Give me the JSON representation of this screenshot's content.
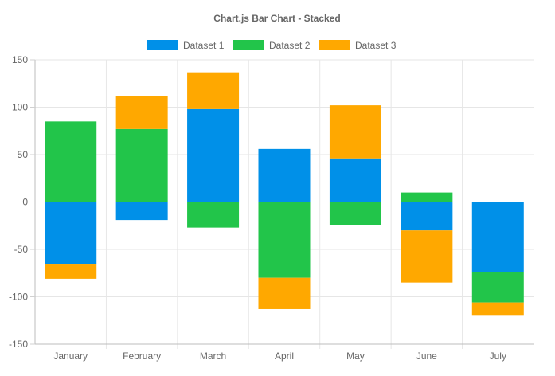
{
  "chart_data": {
    "type": "bar",
    "stacked": true,
    "title": "Chart.js Bar Chart - Stacked",
    "categories": [
      "January",
      "February",
      "March",
      "April",
      "May",
      "June",
      "July"
    ],
    "series": [
      {
        "name": "Dataset 1",
        "color": "#0090e8",
        "values": [
          -66,
          -19,
          98,
          56,
          46,
          -30,
          -74
        ]
      },
      {
        "name": "Dataset 2",
        "color": "#22c54a",
        "values": [
          85,
          77,
          -27,
          -80,
          -24,
          10,
          -32
        ]
      },
      {
        "name": "Dataset 3",
        "color": "#ffa800",
        "values": [
          -15,
          35,
          38,
          -33,
          56,
          -55,
          -14
        ]
      }
    ],
    "ylim": [
      -150,
      150
    ],
    "yticks": [
      150,
      100,
      50,
      0,
      -50,
      -100,
      -150
    ],
    "grid": true,
    "legend_position": "top"
  }
}
